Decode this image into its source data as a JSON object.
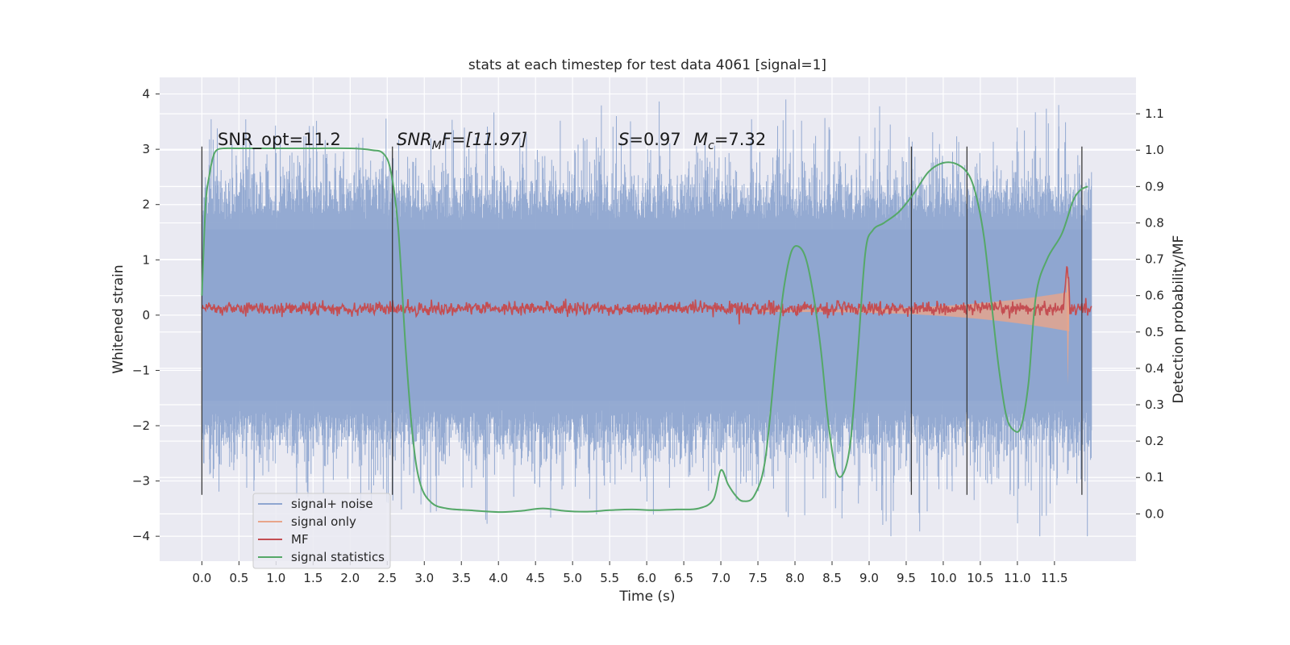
{
  "chart_data": {
    "type": "line",
    "title": "stats at each timestep for test data 4061 [signal=1]",
    "xlabel": "Time (s)",
    "ylabel": "Whitened strain",
    "y2label": "Detection probability/MF",
    "xlim": [
      -0.57,
      12.6
    ],
    "ylim": [
      -4.45,
      4.3
    ],
    "y2lim": [
      -0.13,
      1.2
    ],
    "x_ticks": [
      "0.0",
      "0.5",
      "1.0",
      "1.5",
      "2.0",
      "2.5",
      "3.0",
      "3.5",
      "4.0",
      "4.5",
      "5.0",
      "5.5",
      "6.0",
      "6.5",
      "7.0",
      "7.5",
      "8.0",
      "8.5",
      "9.0",
      "9.5",
      "10.0",
      "10.5",
      "11.0",
      "11.5"
    ],
    "y_ticks": [
      "4",
      "3",
      "2",
      "1",
      "0",
      "−1",
      "−2",
      "−3",
      "−4"
    ],
    "y2_ticks": [
      "1.1",
      "1.0",
      "0.9",
      "0.8",
      "0.7",
      "0.6",
      "0.5",
      "0.4",
      "0.3",
      "0.2",
      "0.1",
      "0.0"
    ],
    "grid": true,
    "legend_position": "lower-left",
    "annotations": {
      "snr_opt": "SNR_opt=11.2",
      "snr_mf_base": "SNR",
      "snr_mf_sub": "M",
      "snr_mf_rest": "F=[11.97]",
      "s_symbol": "S",
      "s_value": "=0.97",
      "mc_symbol": "M",
      "mc_sub": "c",
      "mc_value": "=7.32"
    },
    "vertical_markers": [
      0.0,
      2.57,
      9.57,
      10.32,
      11.87
    ],
    "series": [
      {
        "name": "signal+ noise",
        "color": "#8fa6d0",
        "noise_amplitude": 3.6,
        "t_range": [
          0.0,
          12.0
        ]
      },
      {
        "name": "signal only",
        "color": "#e8a58a",
        "t_range": [
          7.5,
          11.7
        ],
        "peak_amplitude": 1.0
      },
      {
        "name": "MF",
        "color": "#c44e52",
        "mean_level": 0.12,
        "t_range": [
          0.0,
          12.0
        ]
      },
      {
        "name": "signal statistics",
        "color": "#55a868",
        "x": [
          0.0,
          0.05,
          0.1,
          0.15,
          0.2,
          0.3,
          0.5,
          1.0,
          1.5,
          2.0,
          2.3,
          2.45,
          2.55,
          2.65,
          2.75,
          2.85,
          2.95,
          3.1,
          3.3,
          3.6,
          4.0,
          4.3,
          4.6,
          4.9,
          5.2,
          5.5,
          5.8,
          6.1,
          6.4,
          6.7,
          6.9,
          7.0,
          7.1,
          7.2,
          7.3,
          7.45,
          7.6,
          7.75,
          7.85,
          7.95,
          8.05,
          8.15,
          8.25,
          8.35,
          8.45,
          8.55,
          8.65,
          8.75,
          8.85,
          8.95,
          9.05,
          9.2,
          9.4,
          9.6,
          9.8,
          10.0,
          10.2,
          10.35,
          10.45,
          10.55,
          10.65,
          10.75,
          10.85,
          10.95,
          11.05,
          11.15,
          11.25,
          11.4,
          11.6,
          11.75,
          11.85,
          11.95
        ],
        "y": [
          0.6,
          0.85,
          0.93,
          0.98,
          1.0,
          1.005,
          1.005,
          1.005,
          1.005,
          1.005,
          1.0,
          0.99,
          0.94,
          0.78,
          0.45,
          0.2,
          0.08,
          0.03,
          0.015,
          0.01,
          0.005,
          0.008,
          0.015,
          0.008,
          0.006,
          0.01,
          0.012,
          0.01,
          0.012,
          0.015,
          0.04,
          0.12,
          0.08,
          0.05,
          0.035,
          0.05,
          0.15,
          0.45,
          0.62,
          0.72,
          0.735,
          0.7,
          0.6,
          0.45,
          0.25,
          0.12,
          0.11,
          0.2,
          0.45,
          0.72,
          0.78,
          0.8,
          0.83,
          0.88,
          0.94,
          0.965,
          0.96,
          0.93,
          0.87,
          0.76,
          0.58,
          0.4,
          0.27,
          0.23,
          0.24,
          0.36,
          0.6,
          0.7,
          0.77,
          0.86,
          0.89,
          0.9
        ]
      }
    ]
  }
}
